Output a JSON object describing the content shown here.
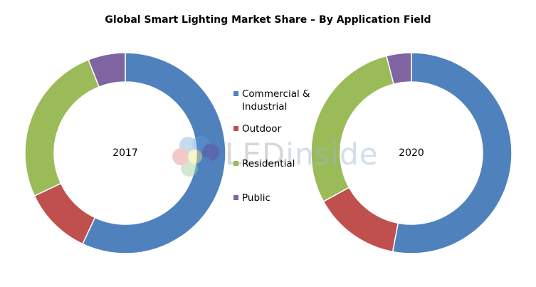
{
  "title": "Global Smart Lighting Market Share – By Application Field",
  "watermark": {
    "brand_led": "LED",
    "brand_inside": "inside"
  },
  "chart_data": [
    {
      "type": "pie",
      "label": "2017",
      "categories": [
        "Commercial & Industrial",
        "Outdoor",
        "Residential",
        "Public"
      ],
      "values": [
        57,
        11,
        26,
        6
      ]
    },
    {
      "type": "pie",
      "label": "2020",
      "categories": [
        "Commercial & Industrial",
        "Outdoor",
        "Residential",
        "Public"
      ],
      "values": [
        53,
        14,
        29,
        4
      ]
    }
  ],
  "legend": {
    "items": [
      {
        "lines": [
          "Commercial &",
          "Industrial"
        ],
        "color": "#4F81BD"
      },
      {
        "lines": [
          "Outdoor"
        ],
        "color": "#C0504D"
      },
      {
        "lines": [
          "Residential"
        ],
        "color": "#9BBB59"
      },
      {
        "lines": [
          "Public"
        ],
        "color": "#8064A2"
      }
    ]
  },
  "colors": [
    "#4F81BD",
    "#C0504D",
    "#9BBB59",
    "#8064A2"
  ]
}
